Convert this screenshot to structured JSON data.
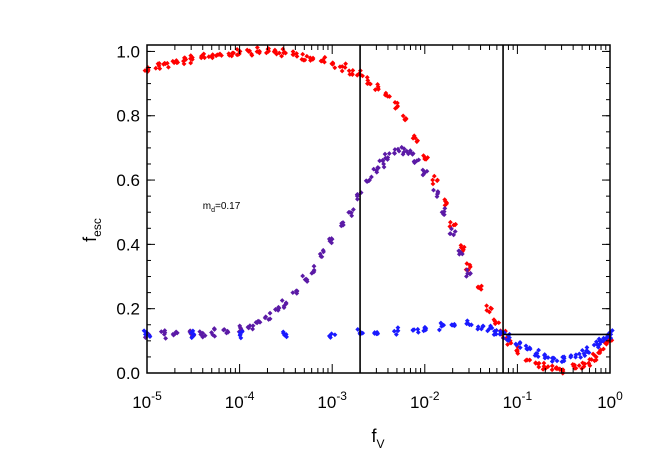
{
  "chart_data": {
    "type": "scatter",
    "title": "",
    "x_scale": "log",
    "xlim": [
      1e-05,
      1
    ],
    "ylim": [
      0,
      1.02
    ],
    "xlabel": {
      "main": "f",
      "sub": "V"
    },
    "ylabel": {
      "main": "f",
      "sub": "esc"
    },
    "x_ticks": [
      {
        "value": 1e-05,
        "base": "10",
        "exp": "-5"
      },
      {
        "value": 0.0001,
        "base": "10",
        "exp": "-4"
      },
      {
        "value": 0.001,
        "base": "10",
        "exp": "-3"
      },
      {
        "value": 0.01,
        "base": "10",
        "exp": "-2"
      },
      {
        "value": 0.1,
        "base": "10",
        "exp": "-1"
      },
      {
        "value": 1,
        "base": "10",
        "exp": "0"
      }
    ],
    "y_ticks": [
      {
        "value": 0.0,
        "label": "0.0"
      },
      {
        "value": 0.2,
        "label": "0.2"
      },
      {
        "value": 0.4,
        "label": "0.4"
      },
      {
        "value": 0.6,
        "label": "0.6"
      },
      {
        "value": 0.8,
        "label": "0.8"
      },
      {
        "value": 1.0,
        "label": "1.0"
      }
    ],
    "annotation": {
      "main": "m",
      "sub": "d",
      "rest": "=0.17",
      "x": 4e-05,
      "y": 0.51
    },
    "vertical_lines": [
      0.002,
      0.07
    ],
    "horizontal_segments": [
      {
        "y": 0.12,
        "x_from": 0.07,
        "x_to": 1
      }
    ],
    "grid": false,
    "series": [
      {
        "color": "#ff0000",
        "points": [
          [
            1e-05,
            0.95
          ],
          [
            1.3e-05,
            0.955
          ],
          [
            1.6e-05,
            0.96
          ],
          [
            2e-05,
            0.965
          ],
          [
            2.5e-05,
            0.97
          ],
          [
            3e-05,
            0.975
          ],
          [
            4e-05,
            0.98
          ],
          [
            5e-05,
            0.985
          ],
          [
            6e-05,
            0.99
          ],
          [
            8e-05,
            0.995
          ],
          [
            0.0001,
            1.0
          ],
          [
            0.00013,
            1.0
          ],
          [
            0.00016,
            1.0
          ],
          [
            0.0002,
            1.0
          ],
          [
            0.00025,
            1.0
          ],
          [
            0.0003,
            0.995
          ],
          [
            0.0004,
            0.99
          ],
          [
            0.0005,
            0.985
          ],
          [
            0.0006,
            0.98
          ],
          [
            0.0008,
            0.97
          ],
          [
            0.001,
            0.96
          ],
          [
            0.0013,
            0.95
          ],
          [
            0.0016,
            0.94
          ],
          [
            0.002,
            0.93
          ],
          [
            0.0025,
            0.91
          ],
          [
            0.003,
            0.89
          ],
          [
            0.004,
            0.86
          ],
          [
            0.005,
            0.83
          ],
          [
            0.006,
            0.79
          ],
          [
            0.008,
            0.73
          ],
          [
            0.01,
            0.67
          ],
          [
            0.013,
            0.6
          ],
          [
            0.016,
            0.53
          ],
          [
            0.02,
            0.46
          ],
          [
            0.025,
            0.39
          ],
          [
            0.03,
            0.33
          ],
          [
            0.04,
            0.26
          ],
          [
            0.05,
            0.2
          ],
          [
            0.06,
            0.16
          ],
          [
            0.07,
            0.12
          ],
          [
            0.08,
            0.1
          ],
          [
            0.1,
            0.07
          ],
          [
            0.13,
            0.04
          ],
          [
            0.16,
            0.03
          ],
          [
            0.2,
            0.02
          ],
          [
            0.25,
            0.01
          ],
          [
            0.3,
            0.01
          ],
          [
            0.4,
            0.015
          ],
          [
            0.5,
            0.02
          ],
          [
            0.6,
            0.03
          ],
          [
            0.7,
            0.05
          ],
          [
            0.8,
            0.07
          ],
          [
            0.9,
            0.09
          ],
          [
            1.0,
            0.11
          ]
        ]
      },
      {
        "color": "#5b1aa6",
        "points": [
          [
            1e-05,
            0.12
          ],
          [
            1.5e-05,
            0.12
          ],
          [
            2e-05,
            0.121
          ],
          [
            3e-05,
            0.122
          ],
          [
            4e-05,
            0.124
          ],
          [
            5e-05,
            0.126
          ],
          [
            7e-05,
            0.13
          ],
          [
            0.0001,
            0.138
          ],
          [
            0.00013,
            0.147
          ],
          [
            0.00016,
            0.158
          ],
          [
            0.0002,
            0.175
          ],
          [
            0.00025,
            0.195
          ],
          [
            0.0003,
            0.215
          ],
          [
            0.0004,
            0.25
          ],
          [
            0.0005,
            0.29
          ],
          [
            0.0006,
            0.32
          ],
          [
            0.0008,
            0.37
          ],
          [
            0.001,
            0.41
          ],
          [
            0.0013,
            0.46
          ],
          [
            0.0016,
            0.5
          ],
          [
            0.002,
            0.55
          ],
          [
            0.0025,
            0.6
          ],
          [
            0.003,
            0.63
          ],
          [
            0.0035,
            0.65
          ],
          [
            0.004,
            0.67
          ],
          [
            0.005,
            0.69
          ],
          [
            0.006,
            0.69
          ],
          [
            0.007,
            0.68
          ],
          [
            0.008,
            0.66
          ],
          [
            0.01,
            0.62
          ],
          [
            0.013,
            0.56
          ],
          [
            0.016,
            0.5
          ],
          [
            0.02,
            0.44
          ],
          [
            0.025,
            0.37
          ],
          [
            0.03,
            0.31
          ]
        ]
      },
      {
        "color": "#1a1aff",
        "points": [
          [
            1e-05,
            0.12
          ],
          [
            3e-05,
            0.12
          ],
          [
            0.0001,
            0.12
          ],
          [
            0.0003,
            0.12
          ],
          [
            0.001,
            0.122
          ],
          [
            0.002,
            0.124
          ],
          [
            0.003,
            0.126
          ],
          [
            0.005,
            0.13
          ],
          [
            0.008,
            0.135
          ],
          [
            0.01,
            0.14
          ],
          [
            0.015,
            0.145
          ],
          [
            0.02,
            0.15
          ],
          [
            0.03,
            0.15
          ],
          [
            0.04,
            0.145
          ],
          [
            0.05,
            0.14
          ],
          [
            0.06,
            0.13
          ],
          [
            0.07,
            0.12
          ],
          [
            0.08,
            0.11
          ],
          [
            0.1,
            0.09
          ],
          [
            0.13,
            0.075
          ],
          [
            0.16,
            0.06
          ],
          [
            0.2,
            0.05
          ],
          [
            0.25,
            0.045
          ],
          [
            0.3,
            0.045
          ],
          [
            0.4,
            0.05
          ],
          [
            0.5,
            0.06
          ],
          [
            0.6,
            0.07
          ],
          [
            0.7,
            0.085
          ],
          [
            0.8,
            0.1
          ],
          [
            0.9,
            0.11
          ],
          [
            1.0,
            0.12
          ]
        ]
      }
    ]
  }
}
